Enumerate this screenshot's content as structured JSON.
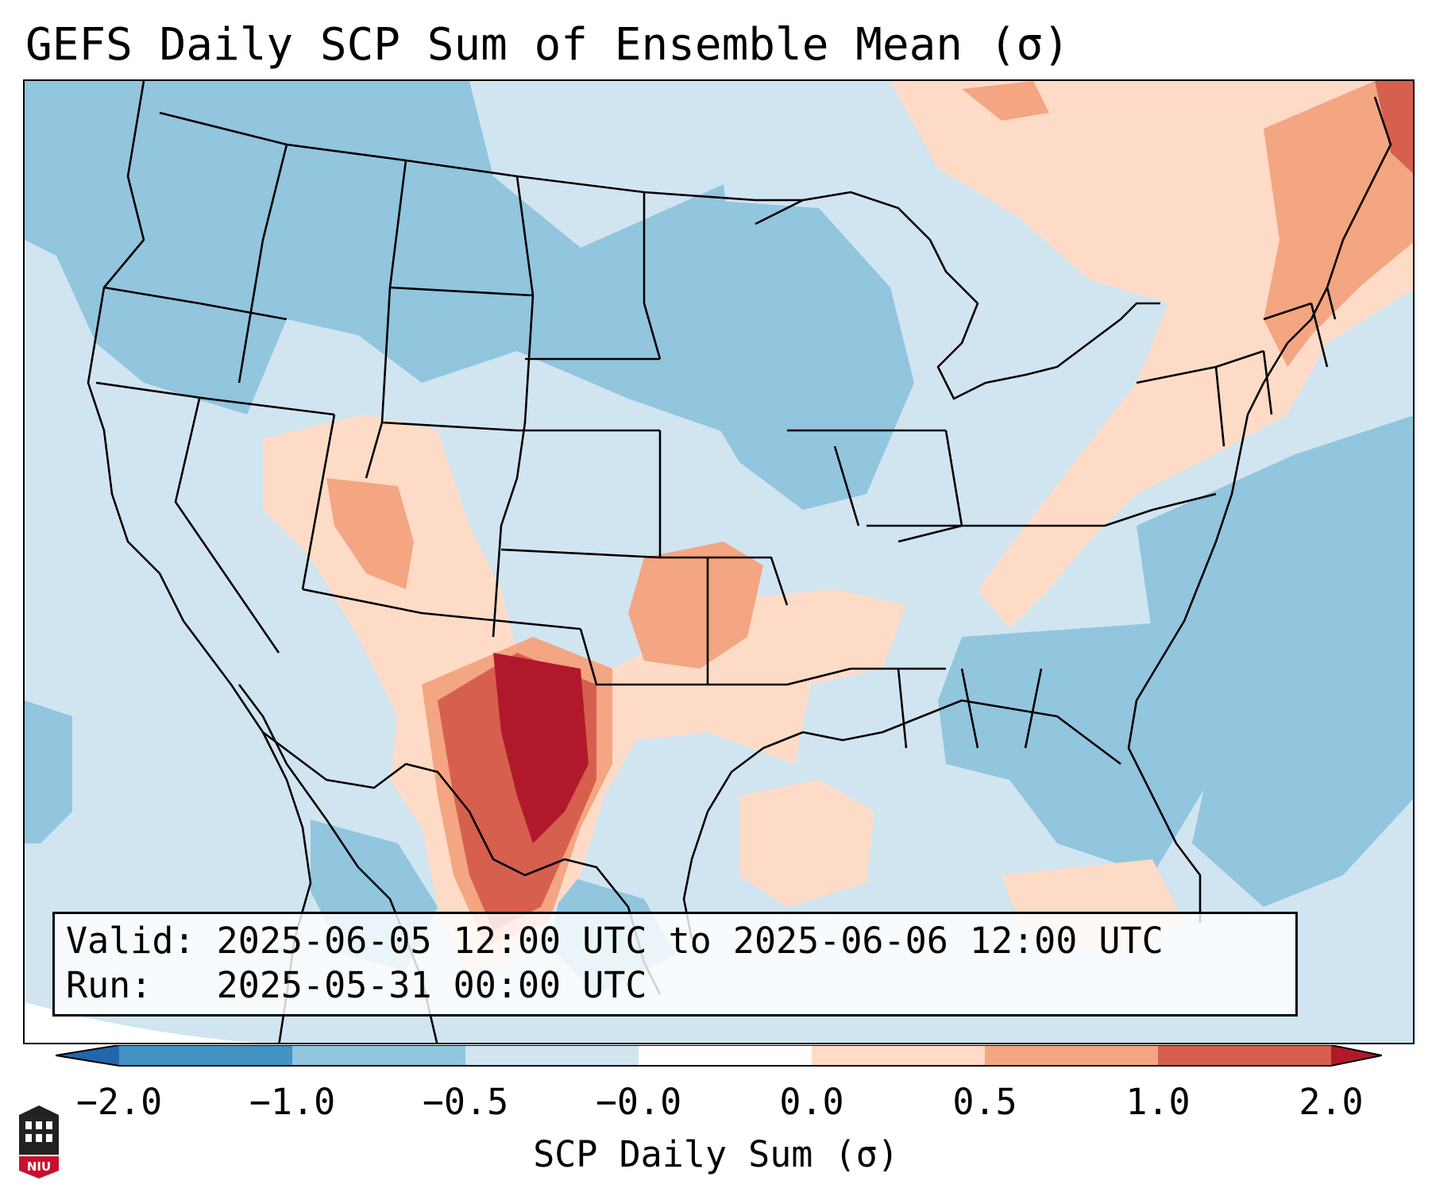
{
  "title": "GEFS Daily SCP Sum of Ensemble Mean (σ)",
  "valid_line": "Valid: 2025-06-05 12:00 UTC to 2025-06-06 12:00 UTC",
  "run_line": "Run:   2025-05-31 00:00 UTC",
  "colorbar": {
    "label": "SCP Daily Sum (σ)",
    "ticks": [
      "−2.0",
      "−1.0",
      "−0.5",
      "−0.0",
      "0.0",
      "0.5",
      "1.0",
      "2.0"
    ],
    "bin_colors": [
      "#4393c3",
      "#92c5de",
      "#d1e5f0",
      "#fddbc7",
      "#f4a582",
      "#d6604d"
    ],
    "under_color": "#2166ac",
    "over_color": "#b2182b",
    "divider_color": "#ffffff"
  },
  "map": {
    "background_color": "#d1e5f0",
    "colors": {
      "strong_negative": "#92c5de",
      "weak_positive": "#fddbc7",
      "moderate_positive": "#f4a582",
      "high_positive": "#d6604d",
      "extreme_positive": "#b2182b"
    }
  },
  "logo": {
    "text": "NIU"
  }
}
